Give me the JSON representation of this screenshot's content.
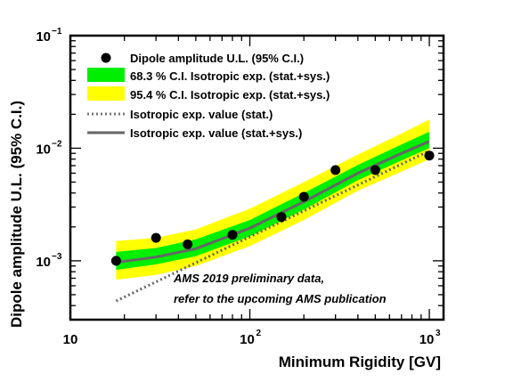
{
  "chart_data": {
    "type": "scatter",
    "title": "",
    "xlabel": "Minimum Rigidity [GV]",
    "ylabel": "Dipole amplitude U.L. (95% C.I.)",
    "x_scale": "log",
    "y_scale": "log",
    "xlim": [
      10,
      1200
    ],
    "ylim": [
      0.0003,
      0.1
    ],
    "x_ticks": [
      {
        "base": "10",
        "exp": ""
      },
      {
        "base": "10",
        "exp": "2"
      },
      {
        "base": "10",
        "exp": "3"
      }
    ],
    "y_ticks": [
      {
        "base": "10",
        "exp": "−3"
      },
      {
        "base": "10",
        "exp": "−2"
      },
      {
        "base": "10",
        "exp": "−1"
      }
    ],
    "grid": false,
    "legend_position": "top-left",
    "legend": [
      "Dipole amplitude U.L. (95% C.I.)",
      "68.3 % C.I. Isotropic exp. (stat.+sys.)",
      "95.4 % C.I. Isotropic exp. (stat.+sys.)",
      "Isotropic exp. value (stat.)",
      "Isotropic exp. value (stat.+sys.)"
    ],
    "series": [
      {
        "name": "Dipole amplitude U.L. (95% C.I.)",
        "kind": "points",
        "color": "#000000",
        "x": [
          18,
          30,
          45,
          80,
          150,
          200,
          300,
          500,
          1000
        ],
        "y": [
          0.001,
          0.0016,
          0.0014,
          0.0017,
          0.00245,
          0.0037,
          0.0064,
          0.0064,
          0.0086
        ]
      },
      {
        "name": "95.4 % C.I. Isotropic exp. (stat.+sys.)",
        "kind": "band",
        "color": "#ffff00",
        "x": [
          18,
          30,
          50,
          100,
          200,
          400,
          700,
          1000
        ],
        "y_low": [
          0.00068,
          0.00075,
          0.0009,
          0.00135,
          0.0023,
          0.0042,
          0.0062,
          0.008
        ],
        "y_high": [
          0.0015,
          0.0016,
          0.0019,
          0.0029,
          0.005,
          0.0088,
          0.0135,
          0.018
        ]
      },
      {
        "name": "68.3 % C.I. Isotropic exp. (stat.+sys.)",
        "kind": "band",
        "color": "#00ee00",
        "x": [
          18,
          30,
          50,
          100,
          200,
          400,
          700,
          1000
        ],
        "y_low": [
          0.00083,
          0.00093,
          0.0011,
          0.00165,
          0.00285,
          0.0052,
          0.0078,
          0.01
        ],
        "y_high": [
          0.0012,
          0.0013,
          0.00155,
          0.0023,
          0.004,
          0.0071,
          0.0108,
          0.014
        ]
      },
      {
        "name": "Isotropic exp. value (stat.+sys.)",
        "kind": "line",
        "color": "#666666",
        "x": [
          18,
          30,
          50,
          100,
          200,
          400,
          700,
          1000
        ],
        "y": [
          0.00097,
          0.00108,
          0.00128,
          0.00195,
          0.00335,
          0.006,
          0.009,
          0.0115
        ]
      },
      {
        "name": "Isotropic exp. value (stat.)",
        "kind": "dotted-line",
        "color": "#666666",
        "x": [
          18,
          1000
        ],
        "y": [
          0.00044,
          0.0095
        ]
      }
    ],
    "annotations": [
      "AMS 2019 preliminary data,",
      "refer to the upcoming AMS publication"
    ]
  }
}
